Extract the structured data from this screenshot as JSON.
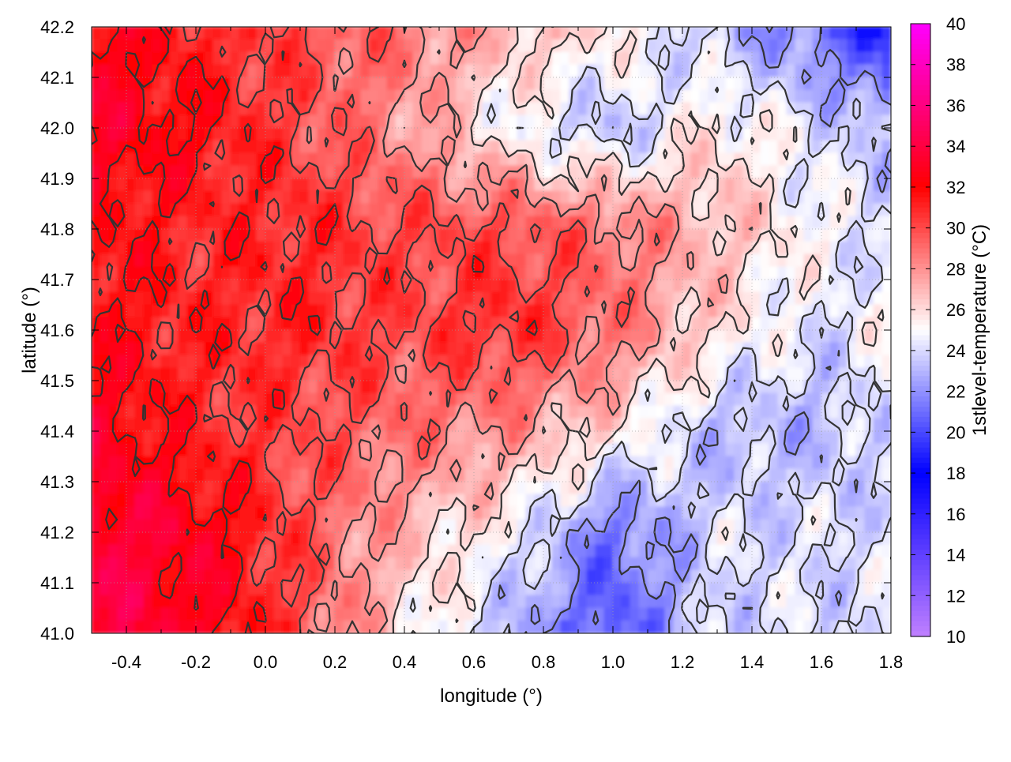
{
  "chart_data": {
    "type": "heatmap",
    "title": "",
    "xlabel": "longitude (°)",
    "ylabel": "latitude (°)",
    "colorbar_label": "1stlevel-temperature (°C)",
    "xlim": [
      -0.5,
      1.8
    ],
    "ylim": [
      41.0,
      42.2
    ],
    "x_ticks": [
      -0.4,
      -0.2,
      0.0,
      0.2,
      0.4,
      0.6,
      0.8,
      1.0,
      1.2,
      1.4,
      1.6,
      1.8
    ],
    "x_tick_labels": [
      "-0.4",
      "-0.2",
      "0.0",
      "0.2",
      "0.4",
      "0.6",
      "0.8",
      "1.0",
      "1.2",
      "1.4",
      "1.6",
      "1.8"
    ],
    "y_ticks": [
      41.0,
      41.1,
      41.2,
      41.3,
      41.4,
      41.5,
      41.6,
      41.7,
      41.8,
      41.9,
      42.0,
      42.1,
      42.2
    ],
    "y_tick_labels": [
      "41.0",
      "41.1",
      "41.2",
      "41.3",
      "41.4",
      "41.5",
      "41.6",
      "41.7",
      "41.8",
      "41.9",
      "42.0",
      "42.1",
      "42.2"
    ],
    "colorbar_range": [
      10,
      40
    ],
    "colorbar_ticks": [
      10,
      12,
      14,
      16,
      18,
      20,
      22,
      24,
      26,
      28,
      30,
      32,
      34,
      36,
      38,
      40
    ],
    "colorbar_tick_labels": [
      "10",
      "12",
      "14",
      "16",
      "18",
      "20",
      "22",
      "24",
      "26",
      "28",
      "30",
      "32",
      "34",
      "36",
      "38",
      "40"
    ],
    "colorscale": [
      {
        "value": 10,
        "color": "#c080ff"
      },
      {
        "value": 18,
        "color": "#0000ff"
      },
      {
        "value": 25,
        "color": "#ffffff"
      },
      {
        "value": 32,
        "color": "#ff0000"
      },
      {
        "value": 40,
        "color": "#ff00ff"
      }
    ],
    "grid": true,
    "contour_levels": [
      22,
      24,
      26,
      28,
      30,
      32
    ],
    "field_samples": {
      "lon": [
        -0.5,
        -0.2,
        0.1,
        0.4,
        0.7,
        1.0,
        1.3,
        1.6,
        1.8
      ],
      "lat": [
        42.2,
        42.0,
        41.8,
        41.6,
        41.4,
        41.2,
        41.0
      ],
      "temperature": [
        [
          33,
          31,
          30,
          29,
          27,
          26,
          23,
          21,
          18
        ],
        [
          33,
          32,
          30,
          28,
          25,
          23,
          26,
          24,
          23
        ],
        [
          32,
          31,
          31,
          30,
          30,
          29,
          27,
          25,
          24
        ],
        [
          32,
          31,
          31,
          30,
          31,
          29,
          26,
          24,
          25
        ],
        [
          33,
          31,
          30,
          29,
          28,
          26,
          23,
          23,
          24
        ],
        [
          34,
          33,
          30,
          27,
          25,
          21,
          24,
          24,
          24
        ],
        [
          34,
          33,
          30,
          26,
          23,
          20,
          24,
          24,
          24
        ]
      ]
    }
  }
}
